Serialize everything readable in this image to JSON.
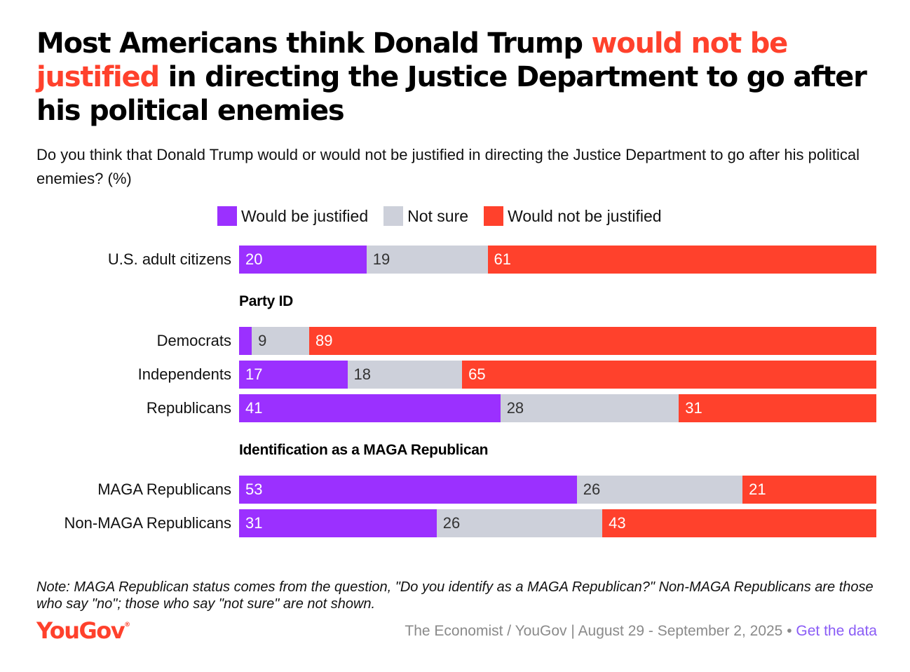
{
  "title": {
    "part1": "Most Americans think Donald Trump ",
    "highlight": "would not be justified",
    "part2": " in directing the Justice Department to go after his political enemies"
  },
  "subtitle": "Do you think that Donald Trump would or would not be justified in directing the Justice Department to go after his political enemies? (%)",
  "legend": [
    {
      "label": "Would be justified",
      "color": "#9b30ff"
    },
    {
      "label": "Not sure",
      "color": "#cdd0da"
    },
    {
      "label": "Would not be justified",
      "color": "#ff412c"
    }
  ],
  "chart_data": {
    "type": "bar",
    "orientation": "horizontal",
    "stacked": true,
    "categories": [
      "U.S. adult citizens",
      "Democrats",
      "Independents",
      "Republicans",
      "MAGA Republicans",
      "Non-MAGA Republicans"
    ],
    "groups": [
      {
        "label": "",
        "rows": [
          "U.S. adult citizens"
        ]
      },
      {
        "label": "Party ID",
        "rows": [
          "Democrats",
          "Independents",
          "Republicans"
        ]
      },
      {
        "label": "Identification as a MAGA Republican",
        "rows": [
          "MAGA Republicans",
          "Non-MAGA Republicans"
        ]
      }
    ],
    "series": [
      {
        "name": "Would be justified",
        "color": "#9b30ff",
        "label_color": "#ffffff",
        "values": [
          20,
          2,
          17,
          41,
          53,
          31
        ],
        "labels": [
          "20",
          "",
          "17",
          "41",
          "53",
          "31"
        ]
      },
      {
        "name": "Not sure",
        "color": "#cdd0da",
        "label_color": "#333333",
        "values": [
          19,
          9,
          18,
          28,
          26,
          26
        ],
        "labels": [
          "19",
          "9",
          "18",
          "28",
          "26",
          "26"
        ]
      },
      {
        "name": "Would not be justified",
        "color": "#ff412c",
        "label_color": "#ffffff",
        "values": [
          61,
          89,
          65,
          31,
          21,
          43
        ],
        "labels": [
          "61",
          "89",
          "65",
          "31",
          "21",
          "43"
        ]
      }
    ],
    "xlim": [
      0,
      100
    ]
  },
  "note": "Note: MAGA Republican status comes from the question, \"Do you identify as a MAGA Republican?\" Non-MAGA Republicans are those who say \"no\"; those who say \"not sure\" are not shown.",
  "footer": {
    "logo": "YouGov",
    "logo_mark": "®",
    "source": "The Economist / YouGov | August 29 - September 2, 2025",
    "separator": " • ",
    "link": "Get the data"
  }
}
